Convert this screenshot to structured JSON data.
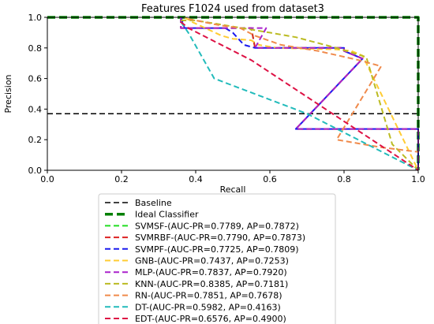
{
  "chart_data": {
    "type": "line",
    "title": "Features F1024 used from dataset3",
    "xlabel": "Recall",
    "ylabel": "Precision",
    "xlim": [
      0,
      1
    ],
    "ylim": [
      0,
      1
    ],
    "xticks": [
      "0.0",
      "0.2",
      "0.4",
      "0.6",
      "0.8",
      "1.0"
    ],
    "yticks": [
      "0.0",
      "0.2",
      "0.4",
      "0.6",
      "0.8",
      "1.0"
    ],
    "grid": false,
    "legend_position": "below",
    "series": [
      {
        "name": "Baseline",
        "color": "#000000",
        "style": "dashed",
        "width": 1.5,
        "x": [
          0,
          1
        ],
        "y": [
          0.37,
          0.37
        ]
      },
      {
        "name": "Ideal Classifier",
        "color": "#008000",
        "style": "dashed",
        "width": 3.5,
        "x": [
          0,
          1,
          1
        ],
        "y": [
          1,
          1,
          0
        ]
      },
      {
        "name": "SVMSF-(AUC-PR=0.7789, AP=0.7872)",
        "color": "#22dd22",
        "style": "dashed",
        "width": 2,
        "x": [
          0.36,
          0.36,
          0.55,
          0.56,
          0.8,
          0.8,
          0.85,
          0.67,
          1.0,
          1.0
        ],
        "y": [
          1.0,
          0.93,
          0.93,
          0.8,
          0.8,
          0.78,
          0.73,
          0.27,
          0.27,
          0.0
        ]
      },
      {
        "name": "SVMRBF-(AUC-PR=0.7790, AP=0.7873)",
        "color": "#dd2222",
        "style": "dashed",
        "width": 2,
        "x": [
          0.36,
          0.36,
          0.55,
          0.56,
          0.8,
          0.8,
          0.85,
          0.67,
          1.0,
          1.0
        ],
        "y": [
          1.0,
          0.93,
          0.93,
          0.8,
          0.8,
          0.78,
          0.73,
          0.27,
          0.27,
          0.0
        ]
      },
      {
        "name": "SVMPF-(AUC-PR=0.7725, AP=0.7809)",
        "color": "#1a1aee",
        "style": "dashed",
        "width": 2,
        "x": [
          0.36,
          0.37,
          0.48,
          0.5,
          0.53,
          0.56,
          0.8,
          0.8,
          0.85,
          0.67,
          1.0,
          1.0
        ],
        "y": [
          1.0,
          0.93,
          0.93,
          0.9,
          0.82,
          0.8,
          0.8,
          0.78,
          0.73,
          0.27,
          0.27,
          0.0
        ]
      },
      {
        "name": "GNB-(AUC-PR=0.7437, AP=0.7253)",
        "color": "#ffcc33",
        "style": "dashed",
        "width": 2,
        "x": [
          0.37,
          0.39,
          0.47,
          0.5,
          0.55,
          0.57,
          0.62,
          0.78,
          0.82,
          0.85,
          1.0
        ],
        "y": [
          1.0,
          0.97,
          0.88,
          0.86,
          0.85,
          0.82,
          0.8,
          0.79,
          0.78,
          0.75,
          0.0
        ]
      },
      {
        "name": "MLP-(AUC-PR=0.7837, AP=0.7920)",
        "color": "#aa22cc",
        "style": "dashed",
        "width": 2,
        "x": [
          0.36,
          0.36,
          0.59,
          0.56,
          0.8,
          0.8,
          0.85,
          0.67,
          1.0,
          1.0
        ],
        "y": [
          1.0,
          0.93,
          0.93,
          0.8,
          0.8,
          0.78,
          0.73,
          0.27,
          0.27,
          0.0
        ]
      },
      {
        "name": "KNN-(AUC-PR=0.8385, AP=0.7181)",
        "color": "#bbbb22",
        "style": "dashed",
        "width": 2,
        "x": [
          0.36,
          0.4,
          0.6,
          0.67,
          0.78,
          0.86,
          0.93,
          1.0
        ],
        "y": [
          0.98,
          0.98,
          0.9,
          0.87,
          0.8,
          0.74,
          0.17,
          0.0
        ]
      },
      {
        "name": "RN-(AUC-PR=0.7851, AP=0.7678)",
        "color": "#f08a4b",
        "style": "dashed",
        "width": 2,
        "x": [
          0.38,
          0.46,
          0.52,
          0.56,
          0.63,
          0.73,
          0.84,
          0.9,
          0.78,
          0.9,
          1.0
        ],
        "y": [
          0.99,
          0.95,
          0.93,
          0.88,
          0.82,
          0.78,
          0.72,
          0.68,
          0.2,
          0.15,
          0.12
        ]
      },
      {
        "name": "DT-(AUC-PR=0.5982, AP=0.4163)",
        "color": "#22bbbb",
        "style": "dashed",
        "width": 2,
        "x": [
          0.36,
          0.38,
          0.45,
          0.7,
          1.0
        ],
        "y": [
          0.97,
          0.9,
          0.6,
          0.37,
          0.0
        ]
      },
      {
        "name": "EDT-(AUC-PR=0.6576, AP=0.4900)",
        "color": "#dd1144",
        "style": "dashed",
        "width": 2,
        "x": [
          0.36,
          0.38,
          0.55,
          1.0
        ],
        "y": [
          0.97,
          0.93,
          0.72,
          0.0
        ]
      }
    ]
  }
}
